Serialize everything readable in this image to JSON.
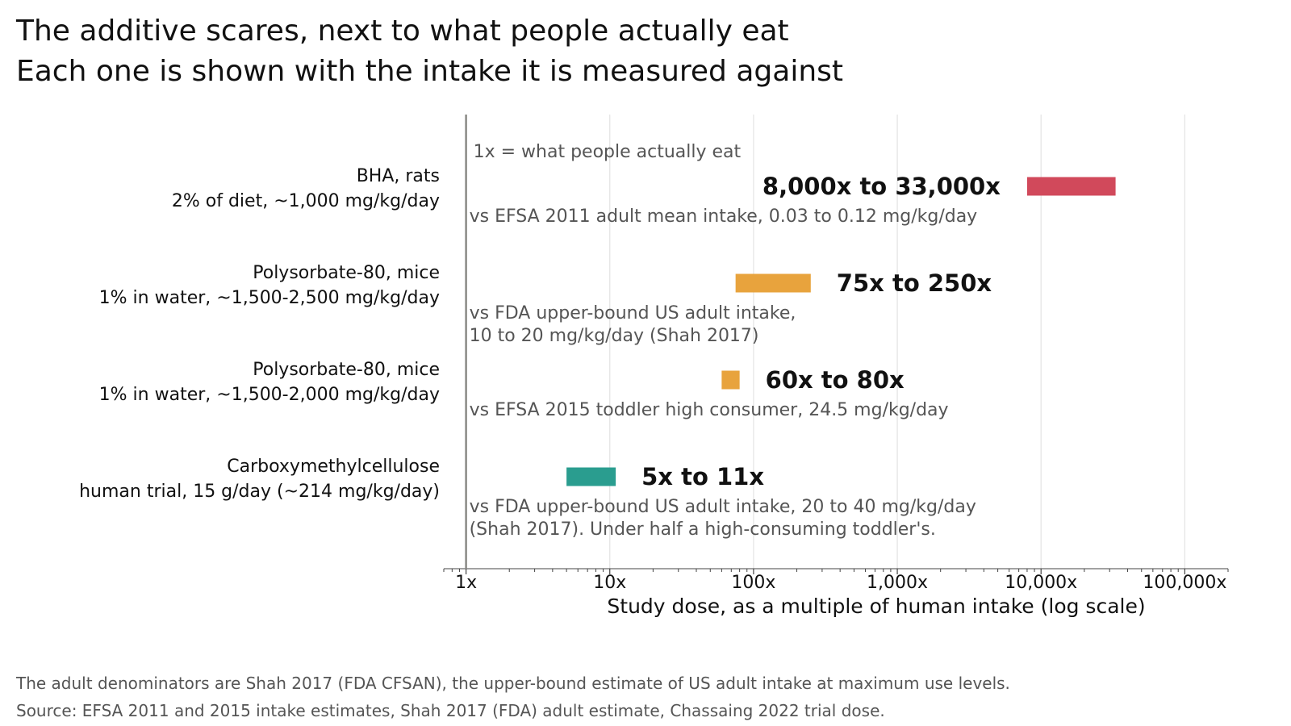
{
  "title": "The additive scares, next to what people actually eat",
  "subtitle": "Each one is shown with the intake it is measured against",
  "footer": {
    "note": "The adult denominators are Shah 2017 (FDA CFSAN), the upper-bound estimate of US adult intake at maximum use levels.",
    "source": "Source: EFSA 2011 and 2015 intake estimates, Shah 2017 (FDA) adult estimate, Chassaing 2022 trial dose."
  },
  "chart_data": {
    "type": "bar",
    "orientation": "horizontal-range",
    "xlabel": "Study dose, as a multiple of human intake (log scale)",
    "x_scale": "log",
    "xlim": [
      0.7,
      200000
    ],
    "xticks": [
      1,
      10,
      100,
      1000,
      10000,
      100000
    ],
    "xtick_labels": [
      "1x",
      "10x",
      "100x",
      "1,000x",
      "10,000x",
      "100,000x"
    ],
    "grid": "vertical",
    "reference_line": {
      "x": 1,
      "label": "1x = what people actually eat"
    },
    "rows": [
      {
        "label_line1": "BHA, rats",
        "label_line2": "2% of diet, ~1,000 mg/kg/day",
        "low": 8000,
        "high": 33000,
        "range_label": "8,000x to 33,000x",
        "range_label_side": "left",
        "note_lines": [
          "vs EFSA 2011 adult mean intake, 0.03 to 0.12 mg/kg/day"
        ],
        "color": "#d1495b"
      },
      {
        "label_line1": "Polysorbate-80, mice",
        "label_line2": "1% in water, ~1,500-2,500 mg/kg/day",
        "low": 75,
        "high": 250,
        "range_label": "75x to 250x",
        "range_label_side": "right",
        "note_lines": [
          "vs FDA upper-bound US adult intake,",
          "10 to 20 mg/kg/day (Shah 2017)"
        ],
        "color": "#e8a33d"
      },
      {
        "label_line1": "Polysorbate-80, mice",
        "label_line2": "1% in water, ~1,500-2,000 mg/kg/day",
        "low": 60,
        "high": 80,
        "range_label": "60x to 80x",
        "range_label_side": "right",
        "note_lines": [
          "vs EFSA 2015 toddler high consumer, 24.5 mg/kg/day"
        ],
        "color": "#e8a33d"
      },
      {
        "label_line1": "Carboxymethylcellulose",
        "label_line2": "human trial, 15 g/day (~214 mg/kg/day)",
        "low": 5,
        "high": 11,
        "range_label": "5x to 11x",
        "range_label_side": "right",
        "note_lines": [
          "vs FDA upper-bound US adult intake, 20 to 40 mg/kg/day",
          "(Shah 2017). Under half a high-consuming toddler's."
        ],
        "color": "#2a9d8f"
      }
    ]
  }
}
